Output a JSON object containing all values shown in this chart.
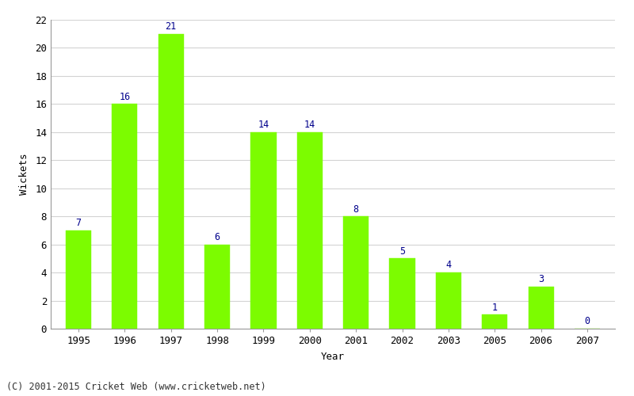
{
  "years": [
    "1995",
    "1996",
    "1997",
    "1998",
    "1999",
    "2000",
    "2001",
    "2002",
    "2003",
    "2005",
    "2006",
    "2007"
  ],
  "values": [
    7,
    16,
    21,
    6,
    14,
    14,
    8,
    5,
    4,
    1,
    3,
    0
  ],
  "bar_color": "#7cfc00",
  "bar_edge_color": "#7cfc00",
  "label_color": "#00008b",
  "xlabel": "Year",
  "ylabel": "Wickets",
  "ylim": [
    0,
    22
  ],
  "yticks": [
    0,
    2,
    4,
    6,
    8,
    10,
    12,
    14,
    16,
    18,
    20,
    22
  ],
  "grid_color": "#d3d3d3",
  "bg_color": "#ffffff",
  "footer_text": "(C) 2001-2015 Cricket Web (www.cricketweb.net)",
  "label_fontsize": 8.5,
  "axis_label_fontsize": 9,
  "tick_fontsize": 9,
  "footer_fontsize": 8.5,
  "bar_width": 0.55
}
